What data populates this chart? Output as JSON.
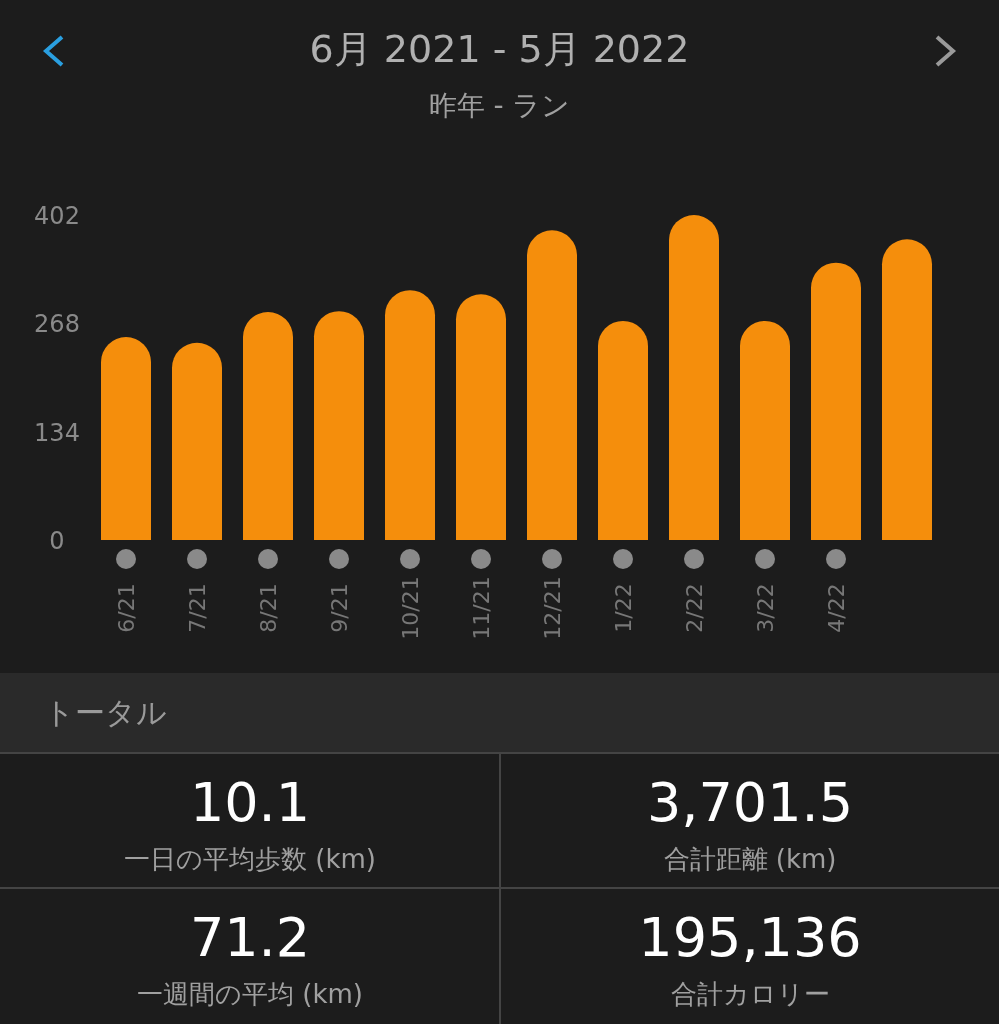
{
  "chart_data": [
    {
      "type": "bar",
      "title": "6月 2021 - 5月 2022",
      "subtitle": "昨年 - ラン",
      "categories": [
        "6/21",
        "7/21",
        "8/21",
        "9/21",
        "10/21",
        "11/21",
        "12/21",
        "1/22",
        "2/22",
        "3/22",
        "4/22",
        null
      ],
      "values": [
        251,
        244,
        282,
        283,
        309,
        304,
        383,
        271,
        402,
        271,
        343,
        372
      ],
      "color": "#f58e0c",
      "ylim": [
        0,
        402
      ],
      "yticks": [
        0,
        134,
        268,
        402
      ],
      "grid": false
    },
    {
      "type": "other",
      "title": "トータル",
      "annotations": [
        "10.1",
        "一日の平均歩数 (km)",
        "3,701.5",
        "合計距離 (km)",
        "71.2",
        "一週間の平均 (km)",
        "195,136",
        "合計カロリー"
      ]
    }
  ]
}
